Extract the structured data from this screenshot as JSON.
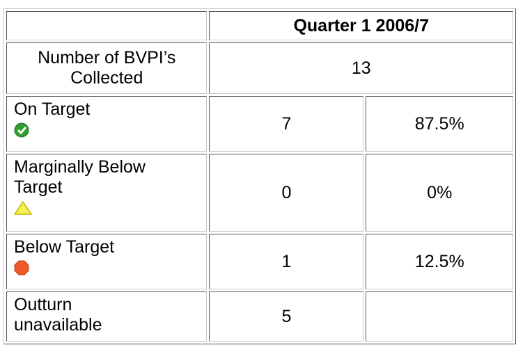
{
  "header": {
    "title": "Quarter 1 2006/7"
  },
  "table": {
    "rows": [
      [
        "Number of BVPI’s Collected",
        "13"
      ],
      [
        "On Target",
        "7",
        "87.5%"
      ],
      [
        "Marginally Below Target",
        "0",
        "0%"
      ],
      [
        "Below Target",
        "1",
        "12.5%"
      ],
      [
        "Outturn unavailable",
        "5"
      ]
    ]
  }
}
